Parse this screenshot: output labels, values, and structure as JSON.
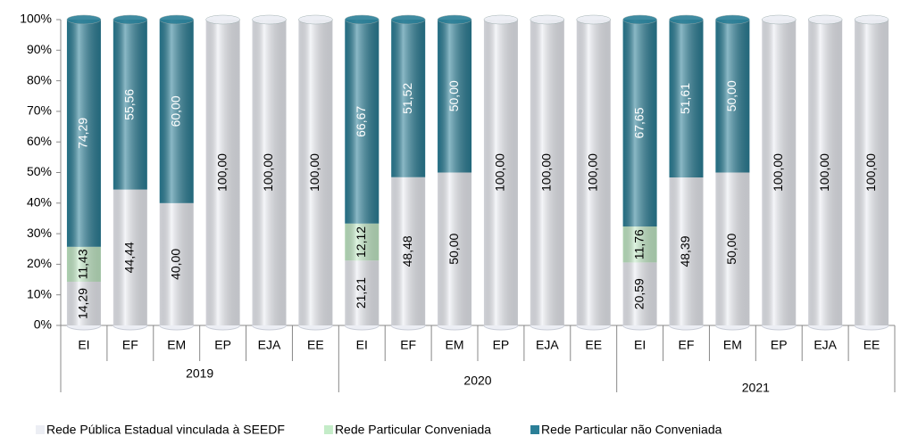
{
  "chart_data": {
    "type": "stacked_cylinder",
    "categories": [
      "EI",
      "EF",
      "EM",
      "EP",
      "EJA",
      "EE",
      "EI",
      "EF",
      "EM",
      "EP",
      "EJA",
      "EE",
      "EI",
      "EF",
      "EM",
      "EP",
      "EJA",
      "EE"
    ],
    "groups": [
      "2019",
      "2020",
      "2021"
    ],
    "series": [
      {
        "name": "Rede Pública Estadual vinculada à SEEDF",
        "color": "#eceef4",
        "values": [
          14.29,
          44.44,
          40.0,
          100,
          100,
          100,
          21.21,
          48.48,
          50.0,
          100,
          100,
          100,
          20.59,
          48.39,
          50.0,
          100,
          100,
          100
        ],
        "value_labels": [
          "14,29",
          "44,44",
          "40,00",
          "100,00",
          "100,00",
          "100,00",
          "21,21",
          "48,48",
          "50,00",
          "100,00",
          "100,00",
          "100,00",
          "20,59",
          "48,39",
          "50,00",
          "100,00",
          "100,00",
          "100,00"
        ]
      },
      {
        "name": "Rede Particular Conveniada",
        "color": "#c4ecc8",
        "values": [
          11.43,
          null,
          null,
          null,
          null,
          null,
          12.12,
          null,
          null,
          null,
          null,
          null,
          11.76,
          null,
          null,
          null,
          null,
          null
        ],
        "value_labels": [
          "11,43",
          null,
          null,
          null,
          null,
          null,
          "12,12",
          null,
          null,
          null,
          null,
          null,
          "11,76",
          null,
          null,
          null,
          null,
          null
        ]
      },
      {
        "name": "Rede Particular não Conveniada",
        "color": "#2b7f97",
        "values": [
          74.29,
          55.56,
          60.0,
          null,
          null,
          null,
          66.67,
          51.52,
          50.0,
          null,
          null,
          null,
          67.65,
          51.61,
          50.0,
          null,
          null,
          null
        ],
        "value_labels": [
          "74,29",
          "55,56",
          "60,00",
          null,
          null,
          null,
          "66,67",
          "51,52",
          "50,00",
          null,
          null,
          null,
          "67,65",
          "51,61",
          "50,00",
          null,
          null,
          null
        ]
      }
    ],
    "ylim": [
      0,
      100
    ],
    "yticks": [
      {
        "value": 0,
        "label": "0%"
      },
      {
        "value": 10,
        "label": "10%"
      },
      {
        "value": 20,
        "label": "20%"
      },
      {
        "value": 30,
        "label": "30%"
      },
      {
        "value": 40,
        "label": "40%"
      },
      {
        "value": 50,
        "label": "50%"
      },
      {
        "value": 60,
        "label": "60%"
      },
      {
        "value": 70,
        "label": "70%"
      },
      {
        "value": 80,
        "label": "80%"
      },
      {
        "value": 90,
        "label": "90%"
      },
      {
        "value": 100,
        "label": "100%"
      }
    ],
    "legend": "bottom"
  }
}
